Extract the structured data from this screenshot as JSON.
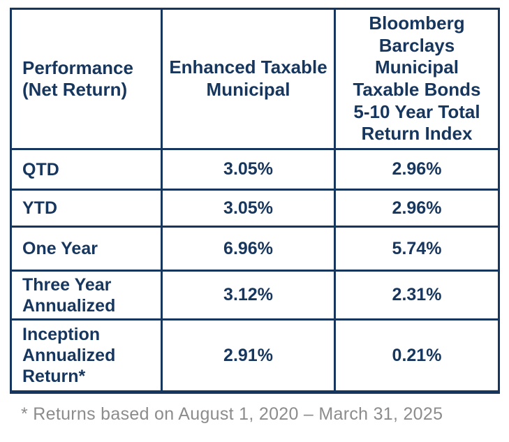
{
  "colors": {
    "navy": "#17365d",
    "border": "#17365d",
    "footnote_gray": "#8c8c8c",
    "background": "#ffffff"
  },
  "table": {
    "columns": [
      {
        "label": "Performance\n(Net Return)"
      },
      {
        "label": "Enhanced Taxable\nMunicipal"
      },
      {
        "label": "Bloomberg\nBarclays\nMunicipal\nTaxable Bonds\n5-10 Year Total\nReturn Index"
      }
    ],
    "rows": [
      {
        "label": "QTD",
        "enhanced": "3.05%",
        "benchmark": "2.96%"
      },
      {
        "label": "YTD",
        "enhanced": "3.05%",
        "benchmark": "2.96%"
      },
      {
        "label": "One Year",
        "enhanced": "6.96%",
        "benchmark": "5.74%"
      },
      {
        "label": "Three Year\nAnnualized",
        "enhanced": "3.12%",
        "benchmark": "2.31%"
      },
      {
        "label": "Inception\nAnnualized\nReturn*",
        "enhanced": "2.91%",
        "benchmark": "0.21%"
      }
    ]
  },
  "footnote": "* Returns based on August 1, 2020 – March 31, 2025"
}
